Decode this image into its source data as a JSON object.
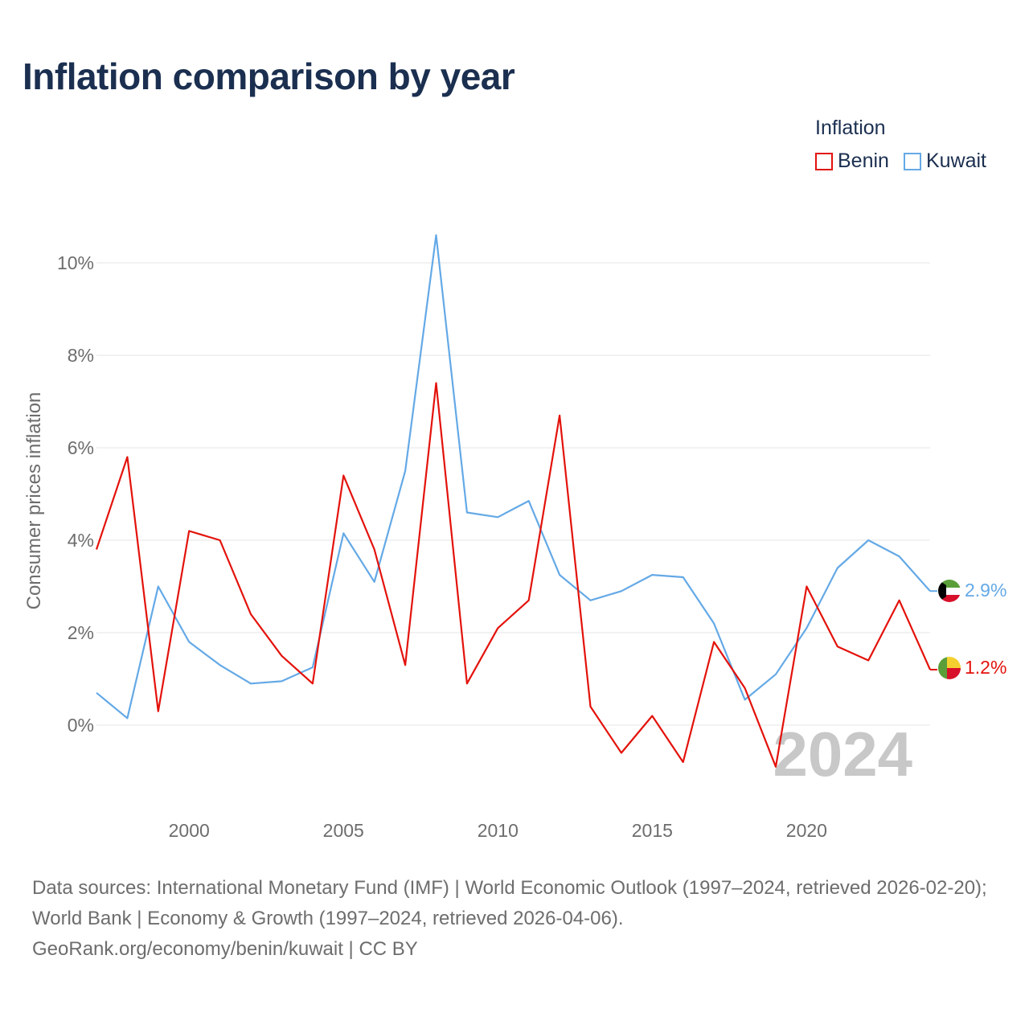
{
  "title": "Inflation comparison by year",
  "legend": {
    "title": "Inflation",
    "items": [
      {
        "label": "Benin",
        "color": "#e3120b"
      },
      {
        "label": "Kuwait",
        "color": "#64a9e6"
      }
    ]
  },
  "year_label": "2024",
  "footer": {
    "sources": "Data sources: International Monetary Fund (IMF) | World Economic Outlook (1997–2024, retrieved 2026-02-20); World Bank | Economy & Growth (1997–2024, retrieved 2026-04-06).",
    "credit": "GeoRank.org/economy/benin/kuwait | CC BY"
  },
  "chart_data": {
    "type": "line",
    "title": "Inflation comparison by year",
    "ylabel": "Consumer prices inflation",
    "xlabel": "",
    "xlim": [
      1997,
      2024
    ],
    "ylim": [
      -1.9,
      11.0
    ],
    "yticks": [
      0,
      2,
      4,
      6,
      8,
      10
    ],
    "ytick_labels": [
      "0%",
      "2%",
      "4%",
      "6%",
      "8%",
      "10%"
    ],
    "xticks": [
      2000,
      2005,
      2010,
      2015,
      2020
    ],
    "xtick_labels": [
      "2000",
      "2005",
      "2010",
      "2015",
      "2020"
    ],
    "x": [
      1997,
      1998,
      1999,
      2000,
      2001,
      2002,
      2003,
      2004,
      2005,
      2006,
      2007,
      2008,
      2009,
      2010,
      2011,
      2012,
      2013,
      2014,
      2015,
      2016,
      2017,
      2018,
      2019,
      2020,
      2021,
      2022,
      2023,
      2024
    ],
    "series": [
      {
        "name": "Benin",
        "color": "#e3120b",
        "end_label": "1.2%",
        "values": [
          3.8,
          5.8,
          0.3,
          4.2,
          4.0,
          2.4,
          1.5,
          0.9,
          5.4,
          3.8,
          1.3,
          7.4,
          0.9,
          2.1,
          2.7,
          6.7,
          0.4,
          -0.6,
          0.2,
          -0.8,
          1.8,
          0.8,
          -0.9,
          3.0,
          1.7,
          1.4,
          2.7,
          1.2
        ]
      },
      {
        "name": "Kuwait",
        "color": "#64a9e6",
        "end_label": "2.9%",
        "values": [
          0.7,
          0.15,
          3.0,
          1.8,
          1.3,
          0.9,
          0.95,
          1.25,
          4.15,
          3.1,
          5.5,
          10.6,
          4.6,
          4.5,
          4.85,
          3.25,
          2.7,
          2.9,
          3.25,
          3.2,
          2.2,
          0.55,
          1.1,
          2.1,
          3.4,
          4.0,
          3.65,
          2.9
        ]
      }
    ]
  }
}
